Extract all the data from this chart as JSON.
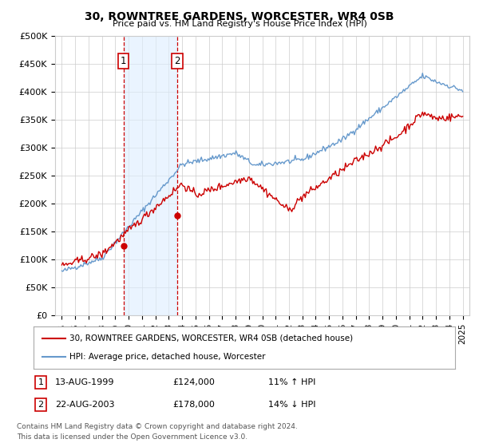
{
  "title": "30, ROWNTREE GARDENS, WORCESTER, WR4 0SB",
  "subtitle": "Price paid vs. HM Land Registry's House Price Index (HPI)",
  "ylabel_ticks": [
    "£0",
    "£50K",
    "£100K",
    "£150K",
    "£200K",
    "£250K",
    "£300K",
    "£350K",
    "£400K",
    "£450K",
    "£500K"
  ],
  "ytick_values": [
    0,
    50000,
    100000,
    150000,
    200000,
    250000,
    300000,
    350000,
    400000,
    450000,
    500000
  ],
  "ylim": [
    0,
    500000
  ],
  "sale1_year": 1999.62,
  "sale1_price": 124000,
  "sale1_label": "1",
  "sale2_year": 2003.64,
  "sale2_price": 178000,
  "sale2_label": "2",
  "red_color": "#cc0000",
  "blue_color": "#6699cc",
  "shade_color": "#ddeeff",
  "vline_color": "#cc0000",
  "grid_color": "#cccccc",
  "background_color": "#ffffff",
  "legend_line1": "30, ROWNTREE GARDENS, WORCESTER, WR4 0SB (detached house)",
  "legend_line2": "HPI: Average price, detached house, Worcester",
  "table_rows": [
    [
      "1",
      "13-AUG-1999",
      "£124,000",
      "11% ↑ HPI"
    ],
    [
      "2",
      "22-AUG-2003",
      "£178,000",
      "14% ↓ HPI"
    ]
  ],
  "footnote1": "Contains HM Land Registry data © Crown copyright and database right 2024.",
  "footnote2": "This data is licensed under the Open Government Licence v3.0.",
  "xlim_start": 1994.5,
  "xlim_end": 2025.5,
  "xtick_years": [
    1995,
    1996,
    1997,
    1998,
    1999,
    2000,
    2001,
    2002,
    2003,
    2004,
    2005,
    2006,
    2007,
    2008,
    2009,
    2010,
    2011,
    2012,
    2013,
    2014,
    2015,
    2016,
    2017,
    2018,
    2019,
    2020,
    2021,
    2022,
    2023,
    2024,
    2025
  ]
}
